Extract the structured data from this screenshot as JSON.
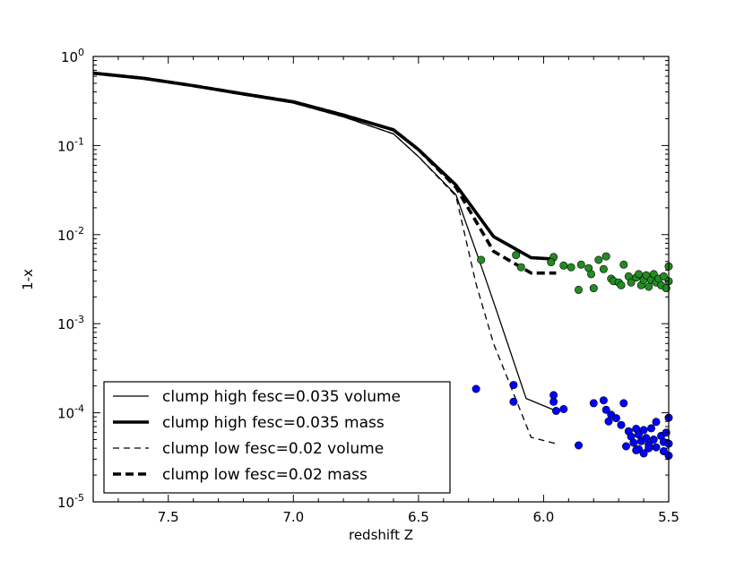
{
  "chart_data": {
    "type": "line",
    "title": "",
    "xlabel": "redshift Z",
    "ylabel": "1-x",
    "xlim": [
      7.8,
      5.5
    ],
    "ylim_log10": [
      -5,
      0
    ],
    "y_scale": "log",
    "x_ticks": [
      {
        "value": 7.5,
        "label": "7.5"
      },
      {
        "value": 7.0,
        "label": "7.0"
      },
      {
        "value": 6.5,
        "label": "6.5"
      },
      {
        "value": 6.0,
        "label": "6.0"
      },
      {
        "value": 5.5,
        "label": "5.5"
      }
    ],
    "y_ticks": [
      {
        "exp": 0,
        "base": "10",
        "sup": "0"
      },
      {
        "exp": -1,
        "base": "10",
        "sup": "-1"
      },
      {
        "exp": -2,
        "base": "10",
        "sup": "-2"
      },
      {
        "exp": -3,
        "base": "10",
        "sup": "-3"
      },
      {
        "exp": -4,
        "base": "10",
        "sup": "-4"
      },
      {
        "exp": -5,
        "base": "10",
        "sup": "-5"
      }
    ],
    "legend_position": "lower-left",
    "series": [
      {
        "name": "clump high fesc=0.035 volume",
        "style": "thin-solid",
        "x": [
          7.8,
          7.6,
          7.4,
          7.2,
          7.0,
          6.8,
          6.6,
          6.5,
          6.35,
          6.25,
          6.18,
          6.07,
          5.95
        ],
        "y": [
          0.65,
          0.56,
          0.46,
          0.37,
          0.3,
          0.21,
          0.135,
          0.075,
          0.028,
          0.0045,
          0.0012,
          0.000145,
          0.000105
        ]
      },
      {
        "name": "clump high fesc=0.035 mass",
        "style": "thick-solid",
        "x": [
          7.8,
          7.6,
          7.4,
          7.2,
          7.0,
          6.8,
          6.6,
          6.5,
          6.35,
          6.2,
          6.05,
          5.95
        ],
        "y": [
          0.65,
          0.57,
          0.47,
          0.38,
          0.31,
          0.22,
          0.15,
          0.09,
          0.036,
          0.0095,
          0.0055,
          0.0053
        ]
      },
      {
        "name": "clump low fesc=0.02 volume",
        "style": "thin-dashed",
        "x": [
          7.8,
          7.6,
          7.4,
          7.2,
          7.0,
          6.8,
          6.6,
          6.5,
          6.35,
          6.27,
          6.2,
          6.05,
          5.95
        ],
        "y": [
          0.65,
          0.56,
          0.46,
          0.37,
          0.3,
          0.21,
          0.135,
          0.075,
          0.027,
          0.0028,
          0.0006,
          5.3e-05,
          4.5e-05
        ]
      },
      {
        "name": "clump low fesc=0.02 mass",
        "style": "thick-dashed",
        "x": [
          7.8,
          7.6,
          7.4,
          7.2,
          7.0,
          6.8,
          6.6,
          6.5,
          6.35,
          6.2,
          6.05,
          5.95
        ],
        "y": [
          0.65,
          0.57,
          0.47,
          0.38,
          0.31,
          0.22,
          0.15,
          0.09,
          0.034,
          0.0065,
          0.0037,
          0.0037
        ]
      }
    ],
    "scatter": [
      {
        "name": "green points",
        "color": "#228b22",
        "points": [
          [
            6.25,
            0.0052
          ],
          [
            6.11,
            0.0059
          ],
          [
            6.09,
            0.0043
          ],
          [
            5.96,
            0.0056
          ],
          [
            5.97,
            0.0049
          ],
          [
            5.92,
            0.0045
          ],
          [
            5.89,
            0.0043
          ],
          [
            5.86,
            0.0024
          ],
          [
            5.85,
            0.0046
          ],
          [
            5.82,
            0.0042
          ],
          [
            5.81,
            0.0036
          ],
          [
            5.8,
            0.0025
          ],
          [
            5.78,
            0.0052
          ],
          [
            5.76,
            0.0041
          ],
          [
            5.75,
            0.0057
          ],
          [
            5.73,
            0.0032
          ],
          [
            5.72,
            0.003
          ],
          [
            5.7,
            0.0029
          ],
          [
            5.69,
            0.0027
          ],
          [
            5.68,
            0.0046
          ],
          [
            5.66,
            0.0034
          ],
          [
            5.65,
            0.0029
          ],
          [
            5.63,
            0.0033
          ],
          [
            5.62,
            0.0036
          ],
          [
            5.61,
            0.0027
          ],
          [
            5.6,
            0.0031
          ],
          [
            5.59,
            0.0035
          ],
          [
            5.58,
            0.0026
          ],
          [
            5.57,
            0.0031
          ],
          [
            5.56,
            0.0036
          ],
          [
            5.55,
            0.0029
          ],
          [
            5.54,
            0.0032
          ],
          [
            5.53,
            0.0027
          ],
          [
            5.52,
            0.0034
          ],
          [
            5.51,
            0.0025
          ],
          [
            5.5,
            0.0044
          ],
          [
            5.5,
            0.003
          ]
        ]
      },
      {
        "name": "blue points",
        "color": "#0000ff",
        "points": [
          [
            6.27,
            0.000185
          ],
          [
            6.12,
            0.000205
          ],
          [
            6.12,
            0.000133
          ],
          [
            5.96,
            0.000158
          ],
          [
            5.96,
            0.000133
          ],
          [
            5.95,
            0.000105
          ],
          [
            5.92,
            0.00011
          ],
          [
            5.86,
            4.3e-05
          ],
          [
            5.8,
            0.000128
          ],
          [
            5.76,
            0.000138
          ],
          [
            5.75,
            0.000108
          ],
          [
            5.73,
            9.5e-05
          ],
          [
            5.74,
            8e-05
          ],
          [
            5.71,
            8.7e-05
          ],
          [
            5.69,
            7.3e-05
          ],
          [
            5.68,
            0.000128
          ],
          [
            5.67,
            4.2e-05
          ],
          [
            5.66,
            6.2e-05
          ],
          [
            5.65,
            5.4e-05
          ],
          [
            5.64,
            4.6e-05
          ],
          [
            5.63,
            6.6e-05
          ],
          [
            5.62,
            5.7e-05
          ],
          [
            5.62,
            3.9e-05
          ],
          [
            5.61,
            4.8e-05
          ],
          [
            5.6,
            6.4e-05
          ],
          [
            5.6,
            3.5e-05
          ],
          [
            5.59,
            5.2e-05
          ],
          [
            5.58,
            4.4e-05
          ],
          [
            5.57,
            6.7e-05
          ],
          [
            5.56,
            5e-05
          ],
          [
            5.55,
            7.9e-05
          ],
          [
            5.55,
            4.1e-05
          ],
          [
            5.53,
            5.5e-05
          ],
          [
            5.52,
            4.7e-05
          ],
          [
            5.52,
            3.7e-05
          ],
          [
            5.51,
            6e-05
          ],
          [
            5.5,
            8.8e-05
          ],
          [
            5.5,
            4.5e-05
          ],
          [
            5.5,
            3.3e-05
          ],
          [
            5.58,
            4e-05
          ],
          [
            5.63,
            3.8e-05
          ]
        ]
      }
    ]
  }
}
